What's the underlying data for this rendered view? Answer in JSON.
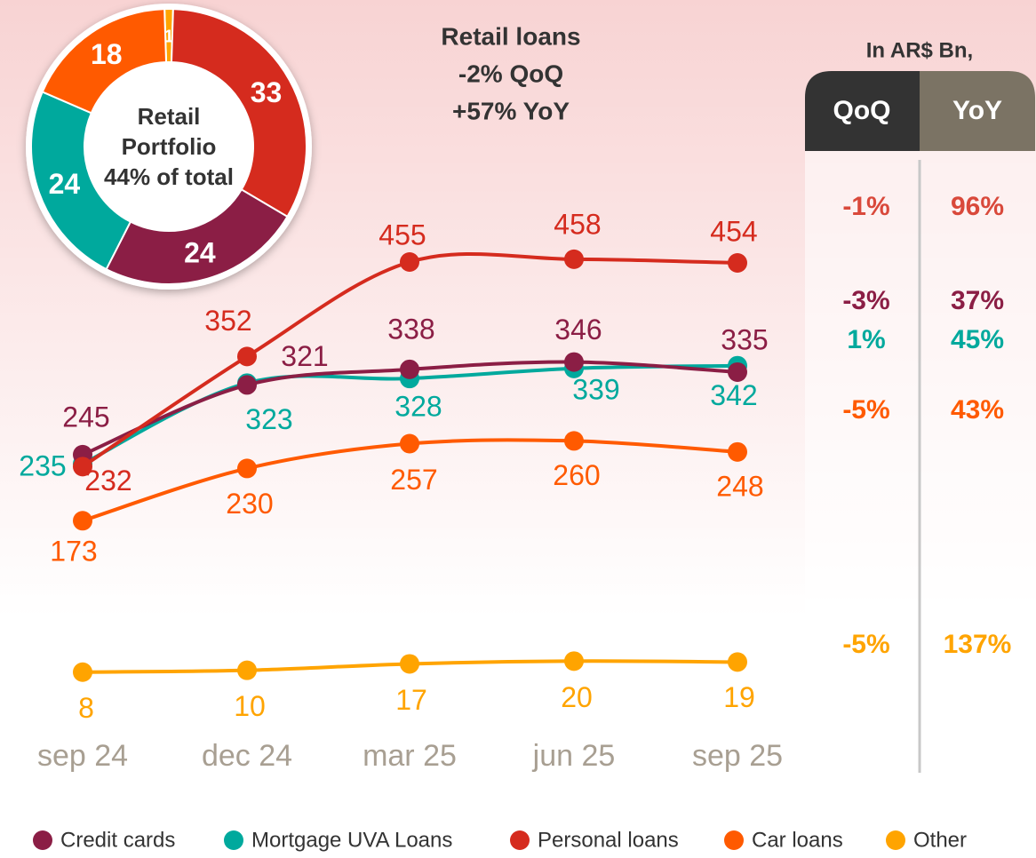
{
  "chart_data": [
    {
      "type": "pie",
      "values": [
        1,
        33,
        24,
        24,
        18
      ],
      "colors": [
        "#ffa400",
        "#d52b1e",
        "#8b1e45",
        "#00a99d",
        "#ff5a00"
      ],
      "center_text": [
        "Retail",
        "Portfolio",
        "44% of total"
      ]
    },
    {
      "type": "line",
      "title": "Retail loans",
      "subtitle": [
        "-2% QoQ",
        "+57% YoY"
      ],
      "categories": [
        "sep 24",
        "dec 24",
        "mar 25",
        "jun 25",
        "sep 25"
      ],
      "series": [
        {
          "name": "Credit cards",
          "color": "#8b1e45",
          "values": [
            245,
            321,
            338,
            346,
            335
          ]
        },
        {
          "name": "Mortgage UVA Loans",
          "color": "#00a99d",
          "values": [
            235,
            323,
            328,
            339,
            342
          ]
        },
        {
          "name": "Personal loans",
          "color": "#d52b1e",
          "values": [
            232,
            352,
            455,
            458,
            454
          ]
        },
        {
          "name": "Car loans",
          "color": "#ff5a00",
          "values": [
            173,
            230,
            257,
            260,
            248
          ]
        },
        {
          "name": "Other",
          "color": "#ffa400",
          "values": [
            8,
            10,
            17,
            20,
            19
          ]
        }
      ]
    }
  ],
  "table": {
    "caption": "In AR$ Bn,",
    "columns": [
      "QoQ",
      "YoY"
    ],
    "rows": [
      {
        "qoq": "-1%",
        "yoy": "96%",
        "color": "#d9493b"
      },
      {
        "qoq": "-3%",
        "yoy": "37%",
        "color": "#8b1e45"
      },
      {
        "qoq": "1%",
        "yoy": "45%",
        "color": "#00a99d"
      },
      {
        "qoq": "-5%",
        "yoy": "43%",
        "color": "#ff5a00"
      },
      {
        "qoq": "-5%",
        "yoy": "137%",
        "color": "#ffa400"
      }
    ]
  }
}
